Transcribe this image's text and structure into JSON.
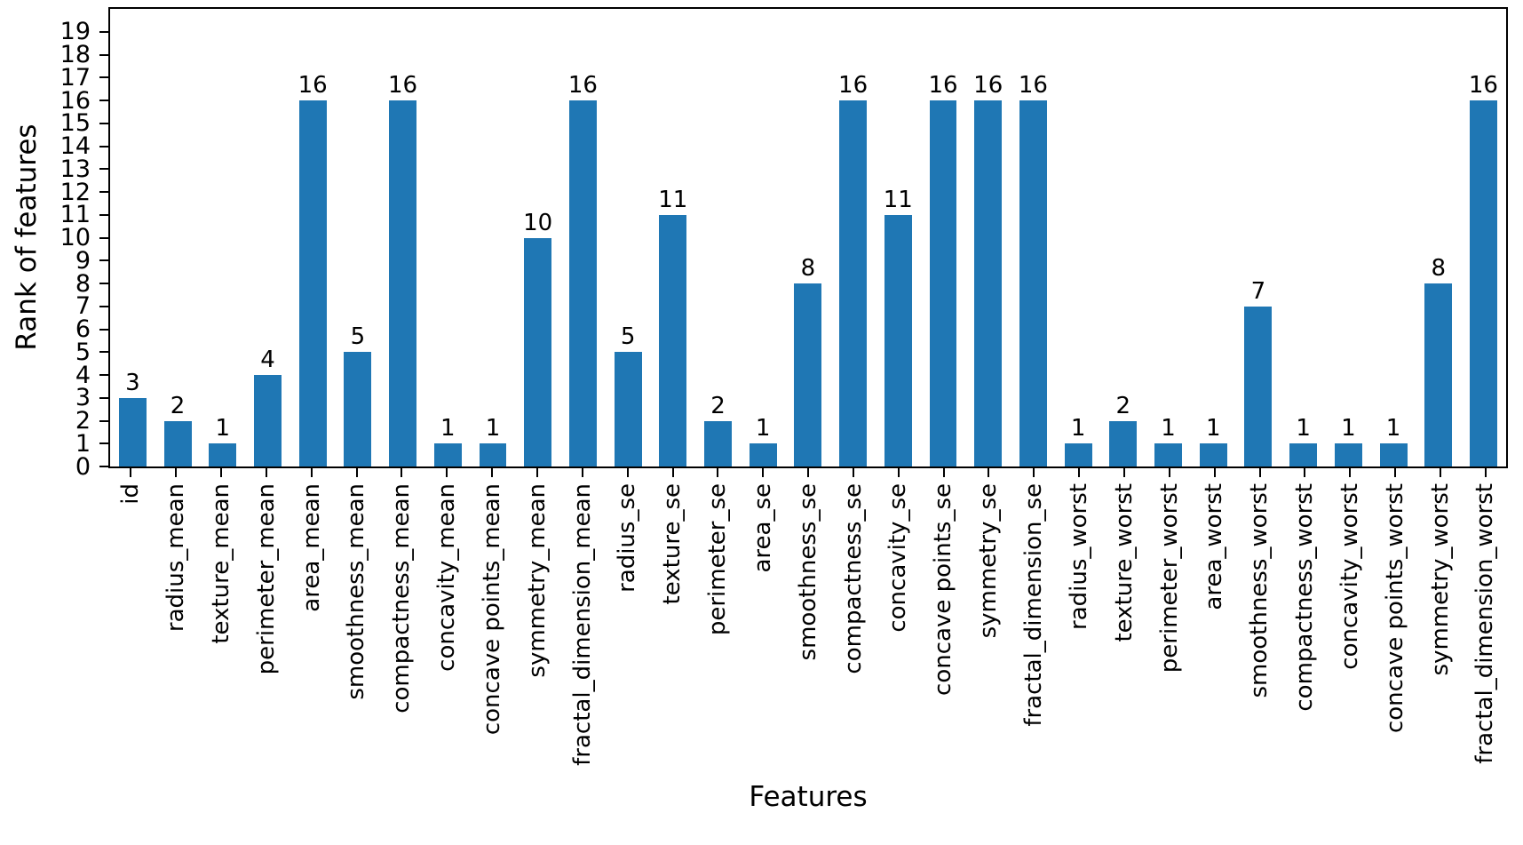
{
  "chart_data": {
    "type": "bar",
    "title": "",
    "xlabel": "Features",
    "ylabel": "Rank of features",
    "ylim": [
      0,
      20
    ],
    "yticks": [
      0,
      1,
      2,
      3,
      4,
      5,
      6,
      7,
      8,
      9,
      10,
      11,
      12,
      13,
      14,
      15,
      16,
      17,
      18,
      19
    ],
    "bar_color": "#1f77b4",
    "grid": false,
    "bar_value_labels_shown": true,
    "legend": "none",
    "categories": [
      "id",
      "radius_mean",
      "texture_mean",
      "perimeter_mean",
      "area_mean",
      "smoothness_mean",
      "compactness_mean",
      "concavity_mean",
      "concave points_mean",
      "symmetry_mean",
      "fractal_dimension_mean",
      "radius_se",
      "texture_se",
      "perimeter_se",
      "area_se",
      "smoothness_se",
      "compactness_se",
      "concavity_se",
      "concave points_se",
      "symmetry_se",
      "fractal_dimension_se",
      "radius_worst",
      "texture_worst",
      "perimeter_worst",
      "area_worst",
      "smoothness_worst",
      "compactness_worst",
      "concavity_worst",
      "concave points_worst",
      "symmetry_worst",
      "fractal_dimension_worst"
    ],
    "values": [
      3,
      2,
      1,
      4,
      16,
      5,
      16,
      1,
      1,
      10,
      16,
      5,
      11,
      2,
      1,
      8,
      16,
      11,
      16,
      16,
      16,
      1,
      2,
      1,
      1,
      7,
      1,
      1,
      1,
      8,
      16
    ]
  }
}
